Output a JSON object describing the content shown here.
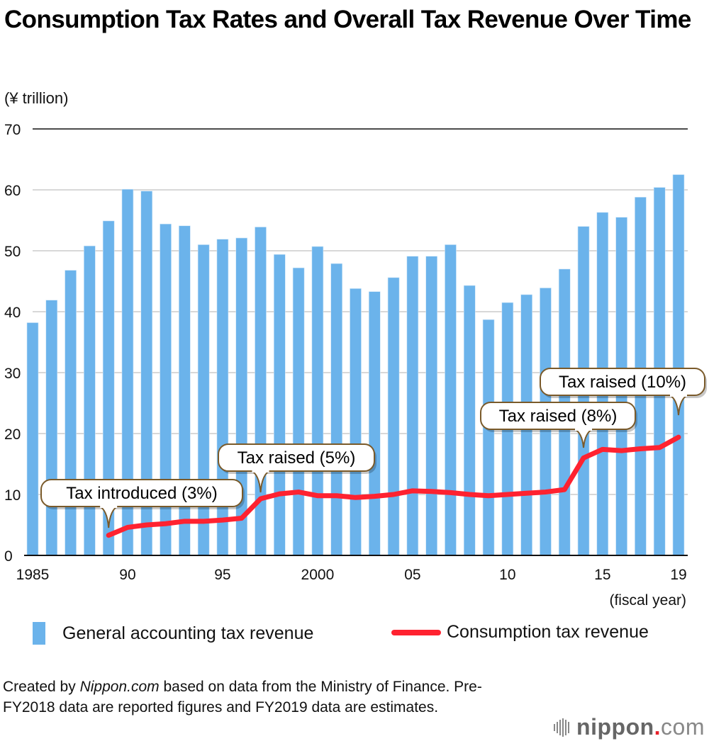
{
  "title": "Consumption Tax Rates and Overall Tax Revenue Over Time",
  "unit_label": "(¥ trillion)",
  "legend": {
    "bar_label": "General accounting tax revenue",
    "line_label": "Consumption tax revenue"
  },
  "source": {
    "prefix": "Created by ",
    "brand": "Nippon.com",
    "suffix": " based on data from the Ministry of Finance. Pre-FY2018 data are reported figures and FY2019 data are estimates."
  },
  "logo": {
    "name": "nippon",
    "dot": ".",
    "tld": "com"
  },
  "colors": {
    "bar": "#6bb3eb",
    "line": "#ff2230",
    "callout_border": "#7a5a2a",
    "axis": "#111111",
    "grid": "#cccccc"
  },
  "chart_data": {
    "type": "bar",
    "title": "Consumption Tax Rates and Overall Tax Revenue Over Time",
    "xlabel": "(fiscal year)",
    "ylabel": "(¥ trillion)",
    "ylim": [
      0,
      70
    ],
    "yticks": [
      0,
      10,
      20,
      30,
      40,
      50,
      60,
      70
    ],
    "grid": true,
    "legend_position": "bottom",
    "x": [
      1985,
      1986,
      1987,
      1988,
      1989,
      1990,
      1991,
      1992,
      1993,
      1994,
      1995,
      1996,
      1997,
      1998,
      1999,
      2000,
      2001,
      2002,
      2003,
      2004,
      2005,
      2006,
      2007,
      2008,
      2009,
      2010,
      2011,
      2012,
      2013,
      2014,
      2015,
      2016,
      2017,
      2018,
      2019
    ],
    "xtick_labels": [
      {
        "year": 1985,
        "label": "1985"
      },
      {
        "year": 1990,
        "label": "90"
      },
      {
        "year": 1995,
        "label": "95"
      },
      {
        "year": 2000,
        "label": "2000"
      },
      {
        "year": 2005,
        "label": "05"
      },
      {
        "year": 2010,
        "label": "10"
      },
      {
        "year": 2015,
        "label": "15"
      },
      {
        "year": 2019,
        "label": "19"
      }
    ],
    "series": [
      {
        "name": "General accounting tax revenue",
        "type": "bar",
        "values": [
          38.2,
          41.9,
          46.8,
          50.8,
          54.9,
          60.1,
          59.8,
          54.4,
          54.1,
          51.0,
          51.9,
          52.1,
          53.9,
          49.4,
          47.2,
          50.7,
          47.9,
          43.8,
          43.3,
          45.6,
          49.1,
          49.1,
          51.0,
          44.3,
          38.7,
          41.5,
          42.8,
          43.9,
          47.0,
          54.0,
          56.3,
          55.5,
          58.8,
          60.4,
          62.5
        ]
      },
      {
        "name": "Consumption tax revenue",
        "type": "line",
        "start_year": 1989,
        "values": [
          3.3,
          4.6,
          5.0,
          5.2,
          5.6,
          5.6,
          5.8,
          6.1,
          9.3,
          10.1,
          10.4,
          9.8,
          9.8,
          9.5,
          9.7,
          10.0,
          10.6,
          10.5,
          10.3,
          10.0,
          9.8,
          10.0,
          10.2,
          10.4,
          10.8,
          16.0,
          17.4,
          17.2,
          17.5,
          17.7,
          19.4
        ]
      }
    ],
    "annotations": [
      {
        "text": "Tax introduced (3%)",
        "year": 1989
      },
      {
        "text": "Tax raised (5%)",
        "year": 1997
      },
      {
        "text": "Tax raised (8%)",
        "year": 2014
      },
      {
        "text": "Tax raised (10%)",
        "year": 2019
      }
    ]
  }
}
